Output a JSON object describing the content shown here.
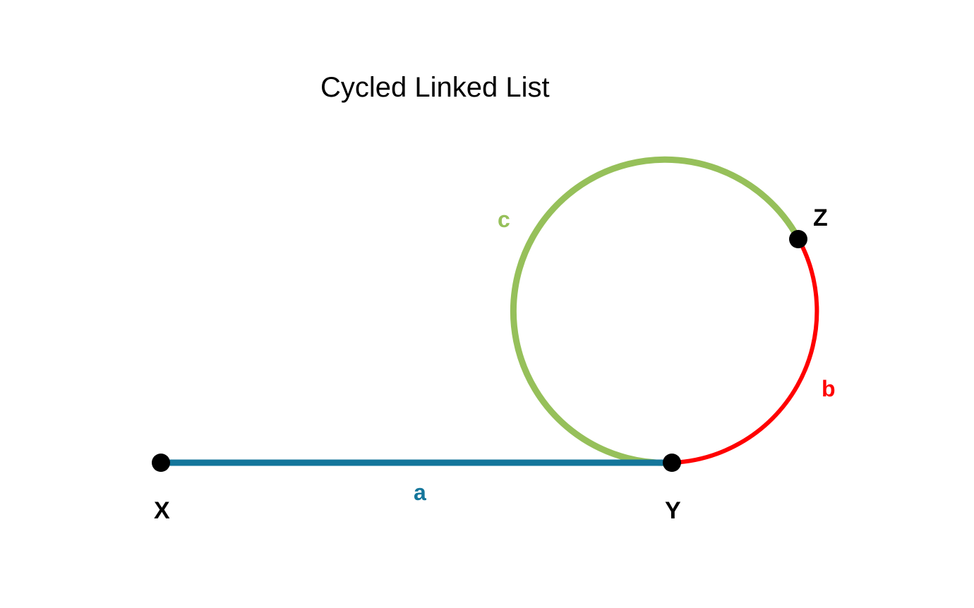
{
  "title": "Cycled Linked List",
  "nodes": {
    "x": {
      "label": "X"
    },
    "y": {
      "label": "Y"
    },
    "z": {
      "label": "Z"
    }
  },
  "segments": {
    "a": {
      "label": "a",
      "color": "#14769b"
    },
    "b": {
      "label": "b",
      "color": "#ff0000"
    },
    "c": {
      "label": "c",
      "color": "#96c05a"
    }
  },
  "colors": {
    "node": "#000000",
    "background": "#ffffff"
  }
}
